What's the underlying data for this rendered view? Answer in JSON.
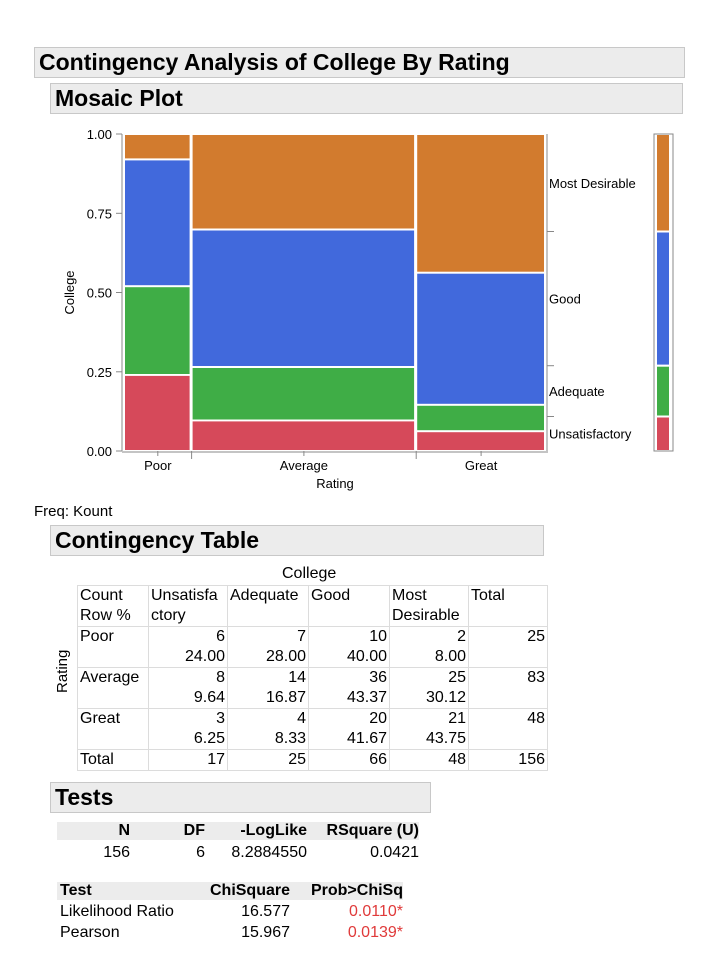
{
  "title": "Contingency Analysis of College By Rating",
  "mosaic_title": "Mosaic Plot",
  "contingency_title": "Contingency Table",
  "tests_title": "Tests",
  "freq_label": "Freq: Kount",
  "colors": {
    "Unsatisfactory": "#d6495a",
    "Adequate": "#3fad46",
    "Good": "#4169dc",
    "Most Desirable": "#d27b2e"
  },
  "chart_data": {
    "type": "mosaic",
    "xlabel": "Rating",
    "ylabel": "College",
    "categories": [
      "Poor",
      "Average",
      "Great"
    ],
    "column_totals": [
      25,
      83,
      48
    ],
    "levels": [
      "Unsatisfactory",
      "Adequate",
      "Good",
      "Most Desirable"
    ],
    "counts": [
      [
        6,
        7,
        10,
        2
      ],
      [
        8,
        14,
        36,
        25
      ],
      [
        3,
        4,
        20,
        21
      ]
    ],
    "margin_totals": [
      17,
      25,
      66,
      48
    ],
    "yticks": [
      "0.00",
      "0.25",
      "0.50",
      "0.75",
      "1.00"
    ],
    "ylim": [
      0,
      1
    ]
  },
  "contingency": {
    "college_label": "College",
    "rating_label": "Rating",
    "corner": [
      "Count",
      "Row %"
    ],
    "col_headers": [
      [
        "Unsatisfa",
        "ctory"
      ],
      [
        "Adequate",
        ""
      ],
      [
        "Good",
        ""
      ],
      [
        "Most",
        "Desirable"
      ],
      [
        "Total",
        ""
      ]
    ],
    "rows": [
      {
        "label": "Poor",
        "counts": [
          "6",
          "7",
          "10",
          "2",
          "25"
        ],
        "pcts": [
          "24.00",
          "28.00",
          "40.00",
          "8.00",
          ""
        ]
      },
      {
        "label": "Average",
        "counts": [
          "8",
          "14",
          "36",
          "25",
          "83"
        ],
        "pcts": [
          "9.64",
          "16.87",
          "43.37",
          "30.12",
          ""
        ]
      },
      {
        "label": "Great",
        "counts": [
          "3",
          "4",
          "20",
          "21",
          "48"
        ],
        "pcts": [
          "6.25",
          "8.33",
          "41.67",
          "43.75",
          ""
        ]
      }
    ],
    "total_row": {
      "label": "Total",
      "values": [
        "17",
        "25",
        "66",
        "48",
        "156"
      ]
    }
  },
  "summary": {
    "headers": [
      "N",
      "DF",
      "-LogLike",
      "RSquare (U)"
    ],
    "values": [
      "156",
      "6",
      "8.2884550",
      "0.0421"
    ]
  },
  "tests": {
    "headers": [
      "Test",
      "ChiSquare",
      "Prob>ChiSq"
    ],
    "rows": [
      {
        "test": "Likelihood Ratio",
        "chisq": "16.577",
        "prob": "0.0110*"
      },
      {
        "test": "Pearson",
        "chisq": "15.967",
        "prob": "0.0139*"
      }
    ]
  }
}
